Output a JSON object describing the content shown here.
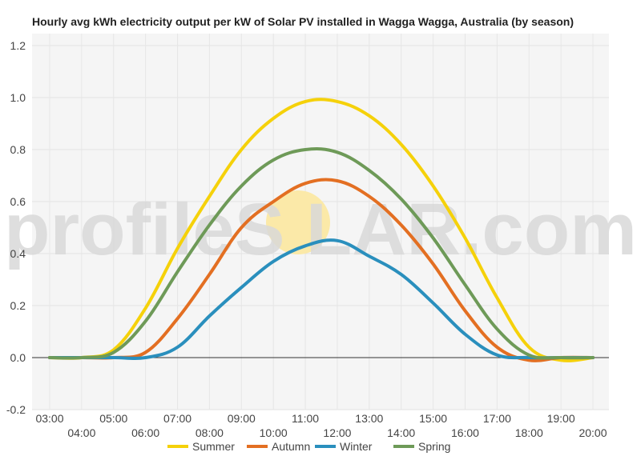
{
  "chart_data": {
    "type": "line",
    "title": "Hourly avg kWh electricity output per kW of Solar PV installed in Wagga Wagga, Australia (by season)",
    "xlabel": "",
    "ylabel": "",
    "ylim": [
      -0.2,
      1.2
    ],
    "yticks": [
      "-0.2",
      "0.0",
      "0.2",
      "0.4",
      "0.6",
      "0.8",
      "1.0",
      "1.2"
    ],
    "x": [
      "03:00",
      "04:00",
      "05:00",
      "06:00",
      "07:00",
      "08:00",
      "09:00",
      "10:00",
      "11:00",
      "12:00",
      "13:00",
      "14:00",
      "15:00",
      "16:00",
      "17:00",
      "18:00",
      "19:00",
      "20:00"
    ],
    "grid": true,
    "legend_position": "bottom",
    "series": [
      {
        "name": "Summer",
        "color": "#f5d10a",
        "values": [
          0.0,
          0.0,
          0.03,
          0.19,
          0.42,
          0.62,
          0.8,
          0.92,
          0.985,
          0.985,
          0.93,
          0.82,
          0.66,
          0.46,
          0.23,
          0.04,
          -0.01,
          0.0
        ]
      },
      {
        "name": "Autumn",
        "color": "#e36f22",
        "values": [
          0.0,
          0.0,
          0.0,
          0.02,
          0.15,
          0.32,
          0.5,
          0.6,
          0.67,
          0.68,
          0.62,
          0.51,
          0.36,
          0.18,
          0.04,
          -0.01,
          0.0,
          0.0
        ]
      },
      {
        "name": "Winter",
        "color": "#2a8fbd",
        "values": [
          0.0,
          0.0,
          0.0,
          0.0,
          0.04,
          0.16,
          0.27,
          0.37,
          0.43,
          0.45,
          0.39,
          0.32,
          0.21,
          0.09,
          0.01,
          0.0,
          0.0,
          0.0
        ]
      },
      {
        "name": "Spring",
        "color": "#6e9a58",
        "values": [
          0.0,
          0.0,
          0.02,
          0.14,
          0.33,
          0.51,
          0.66,
          0.76,
          0.8,
          0.79,
          0.72,
          0.61,
          0.46,
          0.28,
          0.11,
          0.01,
          0.0,
          0.0
        ]
      }
    ]
  },
  "watermark": {
    "text": "profileS LAR.com",
    "sun_color": "#fbe9a8"
  }
}
